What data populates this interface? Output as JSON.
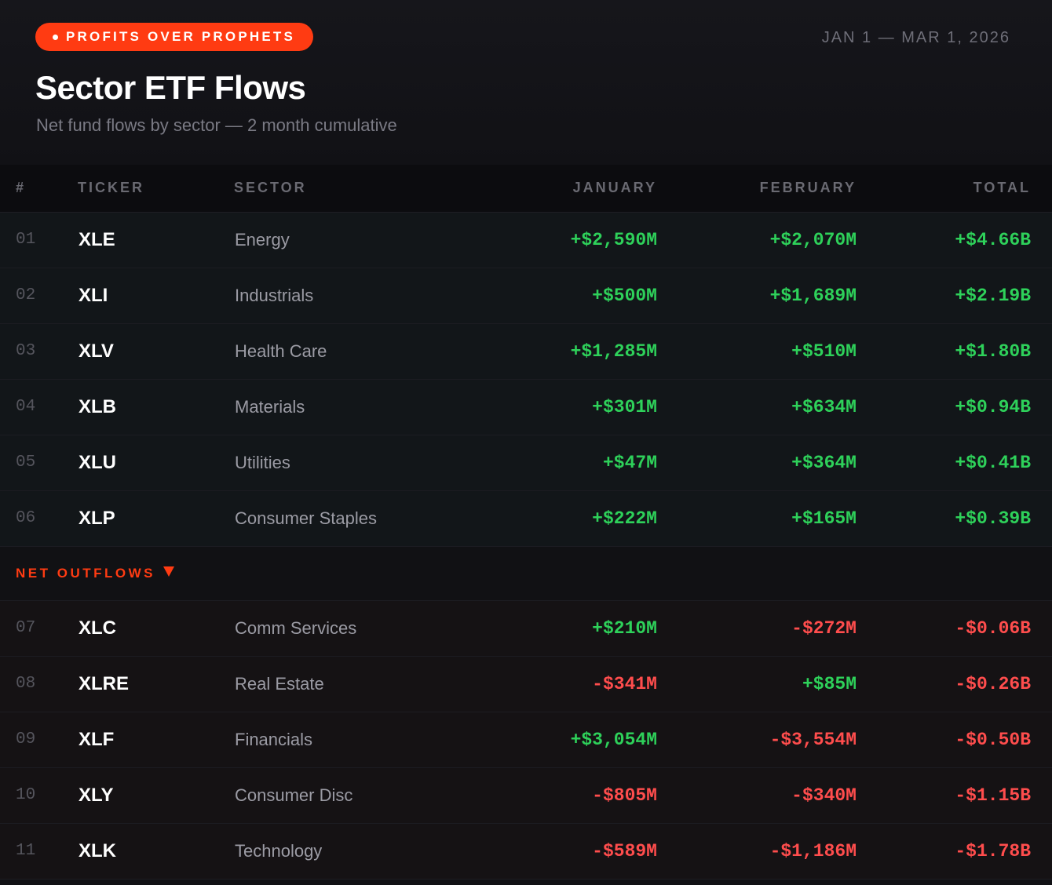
{
  "header": {
    "badge": "PROFITS OVER PROPHETS",
    "date_range": "JAN 1 — MAR 1, 2026",
    "title": "Sector ETF Flows",
    "subtitle": "Net fund flows by sector — 2 month cumulative"
  },
  "colors": {
    "accent": "#ff3b12",
    "positive": "#2ed15a",
    "negative": "#ff4d4d",
    "background": "#111114"
  },
  "chart_data": {
    "type": "table",
    "title": "Sector ETF Flows",
    "subtitle": "Net fund flows by sector — 2 month cumulative",
    "columns": [
      "#",
      "TICKER",
      "SECTOR",
      "JANUARY",
      "FEBRUARY",
      "TOTAL"
    ],
    "inflows": [
      {
        "rank": "01",
        "ticker": "XLE",
        "sector": "Energy",
        "january": "+$2,590M",
        "february": "+$2,070M",
        "total": "+$4.66B"
      },
      {
        "rank": "02",
        "ticker": "XLI",
        "sector": "Industrials",
        "january": "+$500M",
        "february": "+$1,689M",
        "total": "+$2.19B"
      },
      {
        "rank": "03",
        "ticker": "XLV",
        "sector": "Health Care",
        "january": "+$1,285M",
        "february": "+$510M",
        "total": "+$1.80B"
      },
      {
        "rank": "04",
        "ticker": "XLB",
        "sector": "Materials",
        "january": "+$301M",
        "february": "+$634M",
        "total": "+$0.94B"
      },
      {
        "rank": "05",
        "ticker": "XLU",
        "sector": "Utilities",
        "january": "+$47M",
        "february": "+$364M",
        "total": "+$0.41B"
      },
      {
        "rank": "06",
        "ticker": "XLP",
        "sector": "Consumer Staples",
        "january": "+$222M",
        "february": "+$165M",
        "total": "+$0.39B"
      }
    ],
    "section_label": "NET OUTFLOWS",
    "outflows": [
      {
        "rank": "07",
        "ticker": "XLC",
        "sector": "Comm Services",
        "january": "+$210M",
        "february": "-$272M",
        "total": "-$0.06B"
      },
      {
        "rank": "08",
        "ticker": "XLRE",
        "sector": "Real Estate",
        "january": "-$341M",
        "february": "+$85M",
        "total": "-$0.26B"
      },
      {
        "rank": "09",
        "ticker": "XLF",
        "sector": "Financials",
        "january": "+$3,054M",
        "february": "-$3,554M",
        "total": "-$0.50B"
      },
      {
        "rank": "10",
        "ticker": "XLY",
        "sector": "Consumer Disc",
        "january": "-$805M",
        "february": "-$340M",
        "total": "-$1.15B"
      },
      {
        "rank": "11",
        "ticker": "XLK",
        "sector": "Technology",
        "january": "-$589M",
        "february": "-$1,186M",
        "total": "-$1.78B"
      }
    ]
  }
}
